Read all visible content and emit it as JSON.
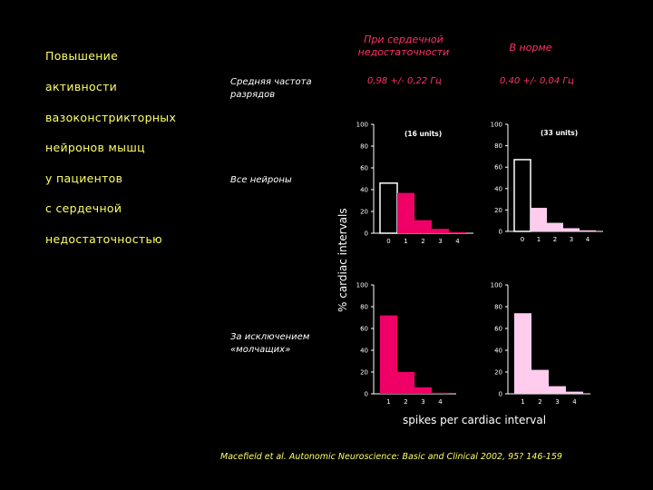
{
  "title_lines": [
    "Повышение",
    "активности",
    "вазоконстрикторных",
    "нейронов мышц",
    "у пациентов",
    "с сердечной",
    "недостаточностью"
  ],
  "columns": {
    "hf_line1": "При сердечной",
    "hf_line2": "недостаточности",
    "normal": "В норме"
  },
  "rows": {
    "freq_line1": "Средняя частота",
    "freq_line2": "разрядов",
    "all_neurons": "Все нейроны",
    "excl_line1": "За исключением",
    "excl_line2": "«молчащих»"
  },
  "freq_values": {
    "hf": "0,98 +/- 0,22 Гц",
    "normal": "0,40 +/- 0,04 Гц"
  },
  "y_axis_label": "% cardiac intervals",
  "x_axis_label": "spikes per cardiac interval",
  "citation": "Macefield et al. Autonomic Neuroscience: Basic and Clinical 2002, 95? 146-159",
  "colors": {
    "hf": "#ee0066",
    "normal": "#ffccee",
    "title": "#ffff66",
    "heading": "#ff3366"
  },
  "chart_data": [
    {
      "type": "bar",
      "id": "hf_all",
      "annotation": "(16 units)",
      "categories": [
        "0",
        "1",
        "2",
        "3",
        "4"
      ],
      "values": [
        46,
        37,
        12,
        4,
        1
      ],
      "outlined_first": true,
      "yticks": [
        "0",
        "20",
        "40",
        "60",
        "80",
        "100"
      ],
      "ylim": [
        0,
        100
      ]
    },
    {
      "type": "bar",
      "id": "normal_all",
      "annotation": "(33 units)",
      "categories": [
        "0",
        "1",
        "2",
        "3",
        "4"
      ],
      "values": [
        67,
        22,
        8,
        3,
        1
      ],
      "outlined_first": true,
      "yticks": [
        "0",
        "20",
        "40",
        "60",
        "80",
        "100"
      ],
      "ylim": [
        0,
        100
      ]
    },
    {
      "type": "bar",
      "id": "hf_excl",
      "annotation": "",
      "categories": [
        "1",
        "2",
        "3",
        "4"
      ],
      "values": [
        72,
        20,
        6,
        1
      ],
      "outlined_first": false,
      "yticks": [
        "0",
        "20",
        "40",
        "60",
        "80",
        "100"
      ],
      "ylim": [
        0,
        100
      ]
    },
    {
      "type": "bar",
      "id": "normal_excl",
      "annotation": "",
      "categories": [
        "1",
        "2",
        "3",
        "4"
      ],
      "values": [
        74,
        22,
        7,
        2
      ],
      "outlined_first": false,
      "yticks": [
        "0",
        "20",
        "40",
        "60",
        "80",
        "100"
      ],
      "ylim": [
        0,
        100
      ]
    }
  ]
}
